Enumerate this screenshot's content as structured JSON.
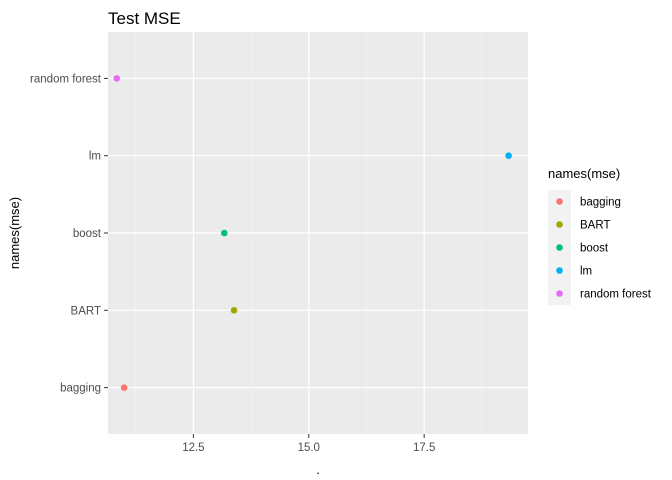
{
  "chart_data": {
    "type": "scatter",
    "title": "Test MSE",
    "xlabel": ".",
    "ylabel": "names(mse)",
    "categories": [
      "bagging",
      "BART",
      "boost",
      "lm",
      "random forest"
    ],
    "x_ticks": [
      12.5,
      15.0,
      17.5
    ],
    "x_tick_labels": [
      "12.5",
      "15.0",
      "17.5"
    ],
    "xlim": [
      10.65,
      19.75
    ],
    "grid": true,
    "legend_position": "right",
    "legend": {
      "title": "names(mse)",
      "entries": [
        "bagging",
        "BART",
        "boost",
        "lm",
        "random forest"
      ]
    },
    "points": [
      {
        "category": "bagging",
        "x": 11.0,
        "color": "#F8766D"
      },
      {
        "category": "BART",
        "x": 13.38,
        "color": "#A3A500"
      },
      {
        "category": "boost",
        "x": 13.17,
        "color": "#00BF7D"
      },
      {
        "category": "lm",
        "x": 19.33,
        "color": "#00B0F6"
      },
      {
        "category": "random forest",
        "x": 10.84,
        "color": "#E76BF3"
      }
    ]
  }
}
